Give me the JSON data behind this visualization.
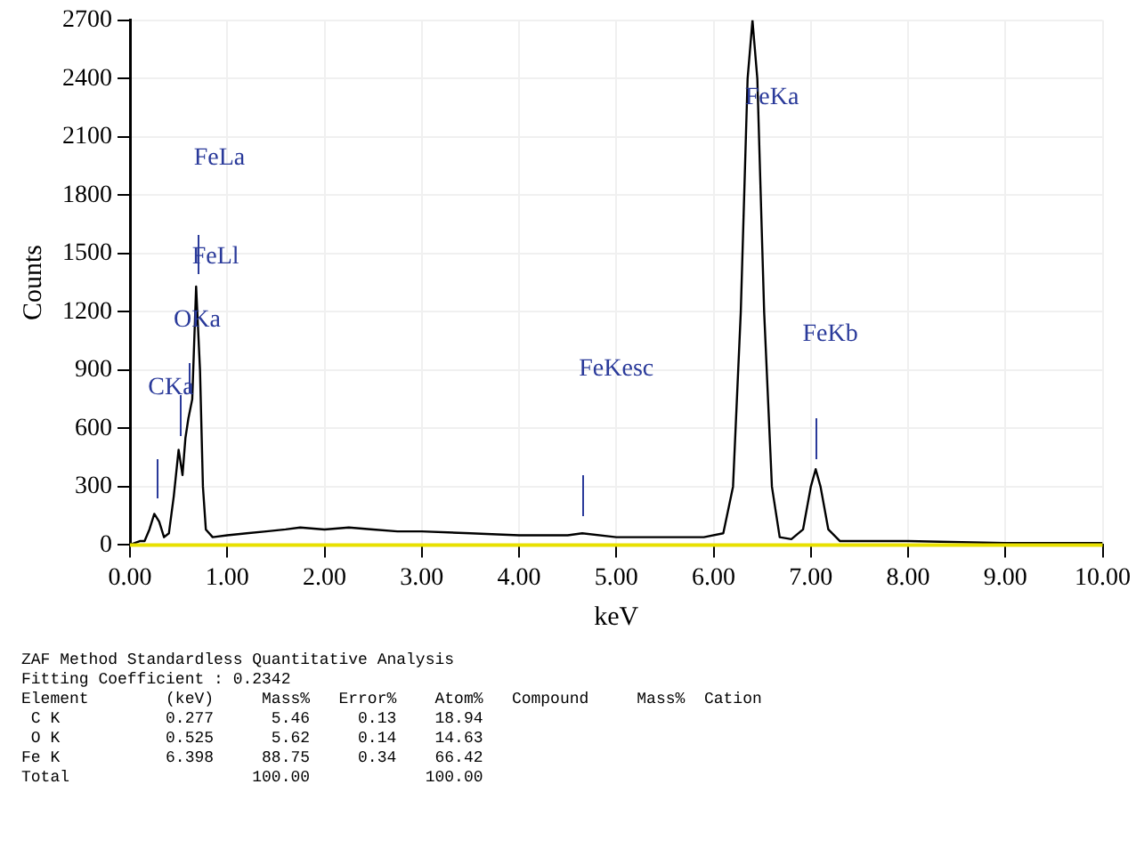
{
  "chart_data": {
    "type": "line",
    "xlabel": "keV",
    "ylabel": "Counts",
    "x": [
      0,
      0.05,
      0.1,
      0.15,
      0.2,
      0.25,
      0.3,
      0.35,
      0.4,
      0.45,
      0.5,
      0.54,
      0.57,
      0.6,
      0.64,
      0.68,
      0.72,
      0.75,
      0.78,
      0.85,
      1,
      1.2,
      1.4,
      1.6,
      1.75,
      2,
      2.25,
      2.5,
      2.75,
      3,
      3.5,
      4,
      4.5,
      4.65,
      5,
      5.5,
      5.9,
      6.1,
      6.2,
      6.28,
      6.35,
      6.4,
      6.45,
      6.52,
      6.6,
      6.68,
      6.8,
      6.92,
      7,
      7.05,
      7.1,
      7.18,
      7.3,
      8,
      9,
      10
    ],
    "series": [
      {
        "color": "#000000",
        "values": [
          0,
          10,
          20,
          20,
          80,
          160,
          120,
          40,
          60,
          250,
          490,
          360,
          550,
          650,
          750,
          1330,
          900,
          300,
          80,
          40,
          50,
          60,
          70,
          80,
          90,
          80,
          90,
          80,
          70,
          70,
          60,
          50,
          50,
          60,
          40,
          40,
          40,
          60,
          300,
          1200,
          2400,
          2700,
          2400,
          1200,
          300,
          40,
          30,
          80,
          300,
          390,
          300,
          80,
          20,
          20,
          10,
          10
        ]
      }
    ],
    "xlim": [
      0,
      10
    ],
    "ylim": [
      0,
      2700
    ],
    "xticks": [
      {
        "value": 0,
        "label": "0.00"
      },
      {
        "value": 1,
        "label": "1.00"
      },
      {
        "value": 2,
        "label": "2.00"
      },
      {
        "value": 3,
        "label": "3.00"
      },
      {
        "value": 4,
        "label": "4.00"
      },
      {
        "value": 5,
        "label": "5.00"
      },
      {
        "value": 6,
        "label": "6.00"
      },
      {
        "value": 7,
        "label": "7.00"
      },
      {
        "value": 8,
        "label": "8.00"
      },
      {
        "value": 9,
        "label": "9.00"
      },
      {
        "value": 10,
        "label": "10.00"
      }
    ],
    "yticks": [
      0,
      300,
      600,
      900,
      1200,
      1500,
      1800,
      2100,
      2400,
      2700
    ],
    "grid": true,
    "legend": false,
    "marker": "none",
    "line_style": "solid",
    "ref_lines": [
      {
        "axis": "y",
        "value": 0,
        "color": "#e8e000"
      }
    ],
    "annotations": [
      "FeLa",
      "FeLl",
      "OKa",
      "CKa",
      "FeKesc",
      "FeKa",
      "FeKb",
      "ZAF Method Standardless Quantitative Analysis",
      "Fitting Coefficient : 0.2342",
      "Element        (keV)     Mass%   Error%    Atom%   Compound     Mass%  Cation",
      " C K           0.277      5.46     0.13    18.94",
      " O K           0.525      5.62     0.14    14.63",
      "Fe K           6.398     88.75     0.34    66.42",
      "Total                   100.00            100.00"
    ]
  }
}
